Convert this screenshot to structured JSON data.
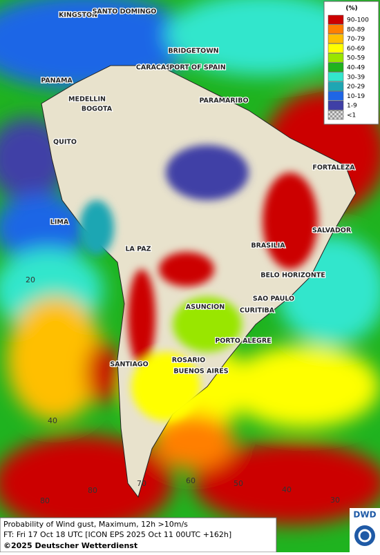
{
  "map": {
    "cities": [
      "KINGSTON",
      "SANTO DOMINGO",
      "BRIDGETOWN",
      "CARACAS",
      "PORT OF SPAIN",
      "PANAMA",
      "MEDELLIN",
      "BOGOTA",
      "PARAMARIBO",
      "QUITO",
      "FORTALEZA",
      "LIMA",
      "SALVADOR",
      "LA PAZ",
      "BRASILIA",
      "BELO HORIZONTE",
      "SAO PAULO",
      "ASUNCION",
      "CURITIBA",
      "PORTO ALEGRE",
      "SANTIAGO",
      "ROSARIO",
      "BUENOS AIRES"
    ],
    "graticule_labels": [
      "20",
      "40",
      "80",
      "80",
      "70",
      "60",
      "50",
      "40",
      "30"
    ],
    "legend": {
      "title": "(%)",
      "entries": [
        {
          "label": "90-100",
          "color": "#cc0000"
        },
        {
          "label": "80-89",
          "color": "#ff7f00"
        },
        {
          "label": "70-79",
          "color": "#ffbf00"
        },
        {
          "label": "60-69",
          "color": "#ffff00"
        },
        {
          "label": "50-59",
          "color": "#99e600"
        },
        {
          "label": "40-49",
          "color": "#1fb31f"
        },
        {
          "label": "30-39",
          "color": "#33e6cc"
        },
        {
          "label": "20-29",
          "color": "#1fa6b3"
        },
        {
          "label": "10-19",
          "color": "#1f66e6"
        },
        {
          "label": "1-9",
          "color": "#3f3fa6"
        },
        {
          "label": "<1",
          "color": "#aaaaaa"
        }
      ]
    },
    "footer": {
      "line1": "Probability of Wind gust, Maximum, 12h >10m/s",
      "line2": "FT: Fri 17 Oct 18 UTC [ICON EPS 2025 Oct 11 00UTC +162h]",
      "copyright": "©2025 Deutscher Wetterdienst",
      "logo": "DWD"
    }
  }
}
